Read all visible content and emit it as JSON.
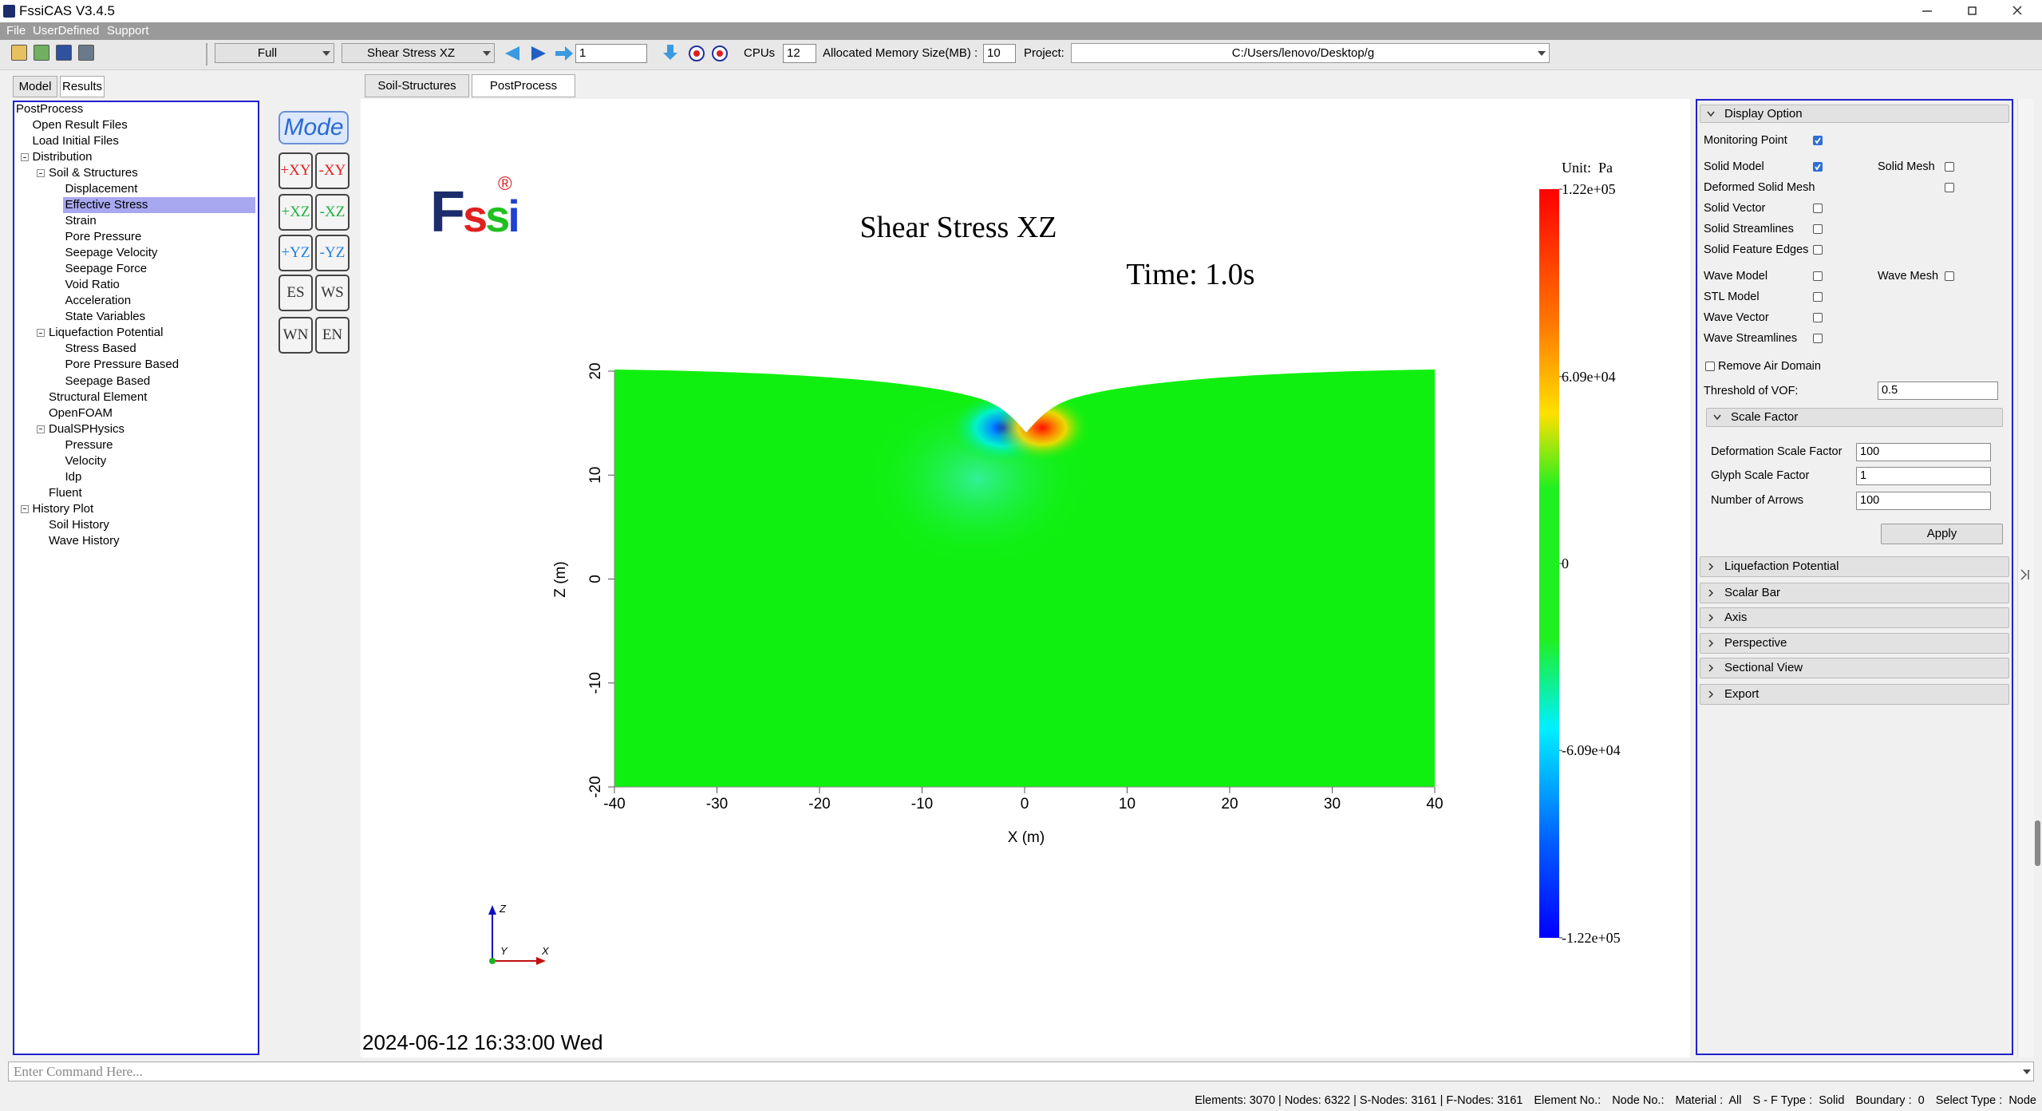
{
  "title_bar": {
    "title": "FssiCAS V3.4.5"
  },
  "menu": [
    "File",
    "UserDefined",
    "Support"
  ],
  "toolbar": {
    "mode": "Full",
    "variable": "Shear Stress XZ",
    "step": "1",
    "cpus_label": "CPUs",
    "cpus": "12",
    "memory_label": "Allocated Memory Size(MB) :",
    "memory": "10",
    "project_label": "Project:",
    "project": "C:/Users/lenovo/Desktop/g"
  },
  "left_tabs": {
    "tabs": [
      "Model",
      "Results"
    ],
    "active": 1
  },
  "tree": {
    "label": "PostProcess",
    "children": [
      {
        "label": "Open Result Files"
      },
      {
        "label": "Load Initial Files"
      },
      {
        "label": "Distribution",
        "children": [
          {
            "label": "Soil & Structures",
            "children": [
              {
                "label": "Displacement"
              },
              {
                "label": "Effective Stress",
                "selected": true
              },
              {
                "label": "Strain"
              },
              {
                "label": "Pore Pressure"
              },
              {
                "label": "Seepage Velocity"
              },
              {
                "label": "Seepage Force"
              },
              {
                "label": "Void Ratio"
              },
              {
                "label": "Acceleration"
              },
              {
                "label": "State Variables"
              }
            ]
          },
          {
            "label": "Liquefaction Potential",
            "children": [
              {
                "label": "Stress Based"
              },
              {
                "label": "Pore Pressure Based"
              },
              {
                "label": "Seepage Based"
              }
            ]
          },
          {
            "label": "Structural Element"
          },
          {
            "label": "OpenFOAM"
          },
          {
            "label": "DualSPHysics",
            "children": [
              {
                "label": "Pressure"
              },
              {
                "label": "Velocity"
              },
              {
                "label": "Idp"
              }
            ]
          },
          {
            "label": "Fluent"
          }
        ]
      },
      {
        "label": "History Plot",
        "children": [
          {
            "label": "Soil History"
          },
          {
            "label": "Wave History"
          }
        ]
      }
    ]
  },
  "view_buttons": {
    "mode": "Mode",
    "buttons": [
      {
        "label": "+XY",
        "color": "#e02020"
      },
      {
        "label": "-XY",
        "color": "#e02020"
      },
      {
        "label": "+XZ",
        "color": "#20b040"
      },
      {
        "label": "-XZ",
        "color": "#20b040"
      },
      {
        "label": "+YZ",
        "color": "#2080e0"
      },
      {
        "label": "-YZ",
        "color": "#2080e0"
      },
      {
        "label": "ES",
        "color": "#333333"
      },
      {
        "label": "WS",
        "color": "#333333"
      },
      {
        "label": "WN",
        "color": "#333333"
      },
      {
        "label": "EN",
        "color": "#333333"
      }
    ]
  },
  "view_tabs": {
    "tabs": [
      "Soil-Structures",
      "PostProcess"
    ],
    "active": 1
  },
  "viewer": {
    "logo": "Fssi",
    "logo_colors": [
      "#1c2c6c",
      "#e02020",
      "#20c020",
      "#2040d0"
    ],
    "logo_mark": "®",
    "title": "Shear Stress XZ",
    "time": "Time: 1.0s",
    "x_label": "X (m)",
    "z_label": "Z (m)",
    "xlim": [
      -40,
      40
    ],
    "xticks": [
      -40,
      -30,
      -20,
      -10,
      0,
      10,
      20,
      30,
      40
    ],
    "zlim": [
      -20,
      20
    ],
    "zticks": [
      -20,
      -10,
      0,
      10,
      20
    ],
    "colorbar": {
      "unit": "Unit:  Pa",
      "clim": [
        -122000,
        122000
      ],
      "ticks": [
        {
          "value": 122000,
          "label": "1.22e+05"
        },
        {
          "value": 60900,
          "label": "6.09e+04"
        },
        0,
        {
          "value": -60900,
          "label": "-6.09e+04"
        },
        {
          "value": -122000,
          "label": "-1.22e+05"
        }
      ]
    },
    "triad": {
      "z": "Z",
      "y": "Y",
      "x": "X"
    },
    "timestamp": "2024-06-12 16:33:00 Wed"
  },
  "display_option": {
    "title": "Display Option",
    "checks": [
      [
        {
          "label": "Monitoring Point",
          "checked": true
        }
      ],
      [
        {
          "label": "Solid Model",
          "checked": true
        },
        {
          "label": "Solid Mesh",
          "checked": false
        }
      ],
      [
        {
          "label": "Deformed Solid Mesh",
          "checked": false
        }
      ],
      [
        {
          "label": "Solid Vector",
          "checked": false
        }
      ],
      [
        {
          "label": "Solid Streamlines",
          "checked": false
        }
      ],
      [
        {
          "label": "Solid Feature Edges",
          "checked": false
        }
      ],
      [
        {
          "label": "Wave Model",
          "checked": false
        },
        {
          "label": "Wave Mesh",
          "checked": false
        }
      ],
      [
        {
          "label": "STL Model",
          "checked": false
        }
      ],
      [
        {
          "label": "Wave Vector",
          "checked": false
        }
      ],
      [
        {
          "label": "Wave Streamlines",
          "checked": false
        }
      ]
    ],
    "remove_air": {
      "label": "Remove Air Domain",
      "checked": false
    },
    "vof": {
      "label": "Threshold of VOF:",
      "value": "0.5"
    },
    "scale_factor": {
      "title": "Scale Factor",
      "fields": [
        {
          "label": "Deformation Scale Factor",
          "value": "100"
        },
        {
          "label": "Glyph Scale Factor",
          "value": "1"
        },
        {
          "label": "Number of Arrows",
          "value": "100"
        }
      ],
      "button": "Apply"
    }
  },
  "sections": [
    "Liquefaction Potential",
    "Scalar Bar",
    "Axis",
    "Perspective",
    "Sectional View",
    "Export"
  ],
  "command": {
    "placeholder": "Enter Command Here..."
  },
  "status_bar": [
    "Elements: 3070 | Nodes: 6322 | S-Nodes: 3161 | F-Nodes: 3161",
    "Element No.:",
    "Node No.:",
    "Material :  All",
    "S - F Type :  Solid",
    "Boundary :  0",
    "Select Type :  Node"
  ]
}
